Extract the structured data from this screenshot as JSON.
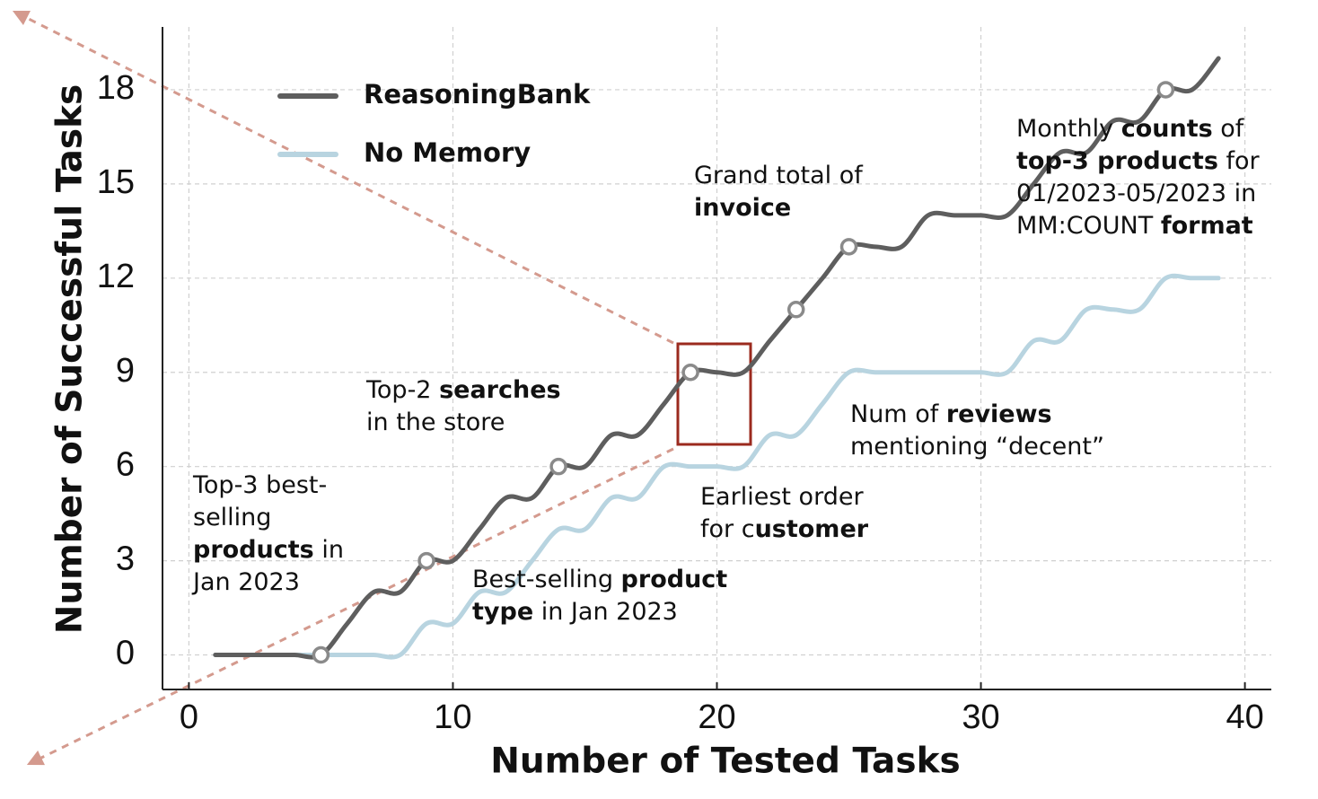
{
  "chart_data": {
    "type": "line",
    "xlabel": "Number of Tested Tasks",
    "ylabel": "Number of Successful Tasks",
    "x": [
      1,
      2,
      3,
      4,
      5,
      6,
      7,
      8,
      9,
      10,
      11,
      12,
      13,
      14,
      15,
      16,
      17,
      18,
      19,
      20,
      21,
      22,
      23,
      24,
      25,
      26,
      27,
      28,
      29,
      30,
      31,
      32,
      33,
      34,
      35,
      36,
      37,
      38,
      39
    ],
    "series": [
      {
        "name": "ReasoningBank",
        "color": "#5e5e5e",
        "values": [
          0,
          0,
          0,
          0,
          0,
          1,
          2,
          2,
          3,
          3,
          4,
          5,
          5,
          6,
          6,
          7,
          7,
          8,
          9,
          9,
          9,
          10,
          11,
          12,
          13,
          13,
          13,
          14,
          14,
          14,
          14,
          15,
          16,
          16,
          17,
          17,
          18,
          18,
          19
        ],
        "markers": [
          5,
          9,
          14,
          19,
          23,
          25,
          37
        ]
      },
      {
        "name": "No Memory",
        "color": "#b8d4e0",
        "values": [
          0,
          0,
          0,
          0,
          0,
          0,
          0,
          0,
          1,
          1,
          2,
          2,
          3,
          4,
          4,
          5,
          5,
          6,
          6,
          6,
          6,
          7,
          7,
          8,
          9,
          9,
          9,
          9,
          9,
          9,
          9,
          10,
          10,
          11,
          11,
          11,
          12,
          12,
          12
        ]
      }
    ],
    "xlim": [
      -1,
      41
    ],
    "ylim": [
      -1.1,
      20
    ],
    "xticks": [
      0,
      10,
      20,
      30,
      40
    ],
    "yticks": [
      0,
      3,
      6,
      9,
      12,
      15,
      18
    ],
    "grid": true,
    "annotations": [
      [
        [
          {
            "text": "Top-3 best-",
            "bold": false
          }
        ],
        [
          {
            "text": "selling",
            "bold": false
          }
        ],
        [
          {
            "text": "products",
            "bold": true
          },
          {
            "text": " in",
            "bold": false
          }
        ],
        [
          {
            "text": "Jan 2023",
            "bold": false
          }
        ]
      ],
      [
        [
          {
            "text": "Top-2 ",
            "bold": false
          },
          {
            "text": "searches",
            "bold": true
          }
        ],
        [
          {
            "text": "in the store",
            "bold": false
          }
        ]
      ],
      [
        [
          {
            "text": "Best-selling ",
            "bold": false
          },
          {
            "text": "product",
            "bold": true
          }
        ],
        [
          {
            "text": "type",
            "bold": true
          },
          {
            "text": " in Jan 2023",
            "bold": false
          }
        ]
      ],
      [
        [
          {
            "text": "Earliest order",
            "bold": false
          }
        ],
        [
          {
            "text": "for c",
            "bold": false
          },
          {
            "text": "ustomer",
            "bold": true
          }
        ]
      ],
      [
        [
          {
            "text": "Grand total of",
            "bold": false
          }
        ],
        [
          {
            "text": "invoice",
            "bold": true
          }
        ]
      ],
      [
        [
          {
            "text": "Num of ",
            "bold": false
          },
          {
            "text": "reviews",
            "bold": true
          }
        ],
        [
          {
            "text": "mentioning “decent”",
            "bold": false
          }
        ]
      ],
      [
        [
          {
            "text": "Monthly ",
            "bold": false
          },
          {
            "text": "counts",
            "bold": true
          },
          {
            "text": " of",
            "bold": false
          }
        ],
        [
          {
            "text": "top-3 products",
            "bold": true
          },
          {
            "text": " for",
            "bold": false
          }
        ],
        [
          {
            "text": "01/2023-05/2023 in",
            "bold": false
          }
        ],
        [
          {
            "text": "MM:COUNT ",
            "bold": false
          },
          {
            "text": "format",
            "bold": true
          }
        ]
      ]
    ]
  }
}
